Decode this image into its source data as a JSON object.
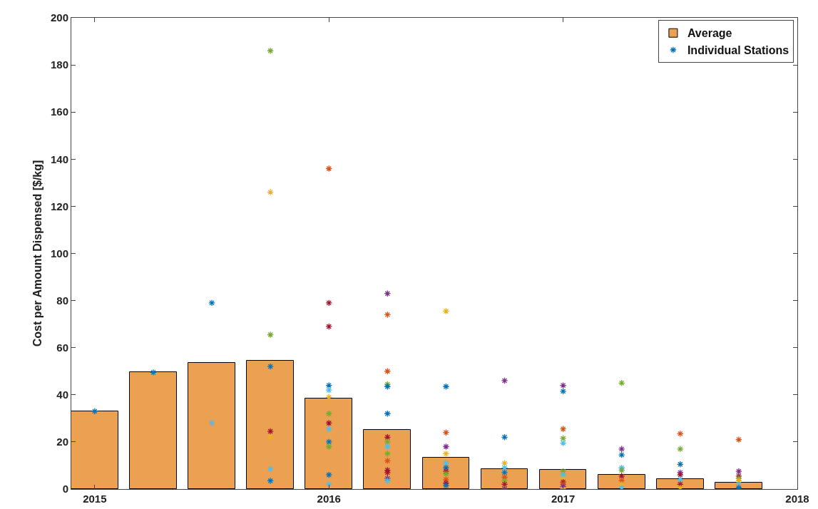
{
  "chart_data": {
    "type": "bar",
    "ylabel": "Cost per Amount Dispensed [$/kg]",
    "x": [
      2015,
      2015.25,
      2015.5,
      2015.75,
      2016,
      2016.25,
      2016.5,
      2016.75,
      2017,
      2017.25,
      2017.5,
      2017.75
    ],
    "xlim": [
      2014.9,
      2018
    ],
    "xticks": [
      2015,
      2016,
      2017,
      2018
    ],
    "ylim": [
      0,
      200
    ],
    "yticks": [
      0,
      20,
      40,
      60,
      80,
      100,
      120,
      140,
      160,
      180,
      200
    ],
    "grid": false,
    "legend": "top right",
    "marker": "cross",
    "series": [
      {
        "name": "Average",
        "color": "#eca052",
        "values": [
          33,
          49.5,
          53.5,
          54.5,
          38.5,
          25,
          13.3,
          8.5,
          8.2,
          6.2,
          4.2,
          2.7
        ]
      },
      {
        "name": "Individual Stations",
        "type": "scatter",
        "x": [
          2015,
          2015.25,
          2015.5,
          2015.5,
          2015.75,
          2015.75,
          2015.75,
          2015.75,
          2015.75,
          2015.75,
          2015.75,
          2015.75,
          2016,
          2016,
          2016,
          2016,
          2016,
          2016,
          2016,
          2016,
          2016,
          2016,
          2016,
          2016,
          2016,
          2016.25,
          2016.25,
          2016.25,
          2016.25,
          2016.25,
          2016.25,
          2016.25,
          2016.25,
          2016.25,
          2016.25,
          2016.25,
          2016.25,
          2016.25,
          2016.25,
          2016.25,
          2016.5,
          2016.5,
          2016.5,
          2016.5,
          2016.5,
          2016.5,
          2016.5,
          2016.5,
          2016.5,
          2016.5,
          2016.5,
          2016.5,
          2016.75,
          2016.75,
          2016.75,
          2016.75,
          2016.75,
          2016.75,
          2016.75,
          2016.75,
          2016.75,
          2017,
          2017,
          2017,
          2017,
          2017,
          2017,
          2017,
          2017,
          2017,
          2017,
          2017,
          2017,
          2017.25,
          2017.25,
          2017.25,
          2017.25,
          2017.25,
          2017.25,
          2017.25,
          2017.25,
          2017.25,
          2017.5,
          2017.5,
          2017.5,
          2017.5,
          2017.5,
          2017.5,
          2017.5,
          2017.5,
          2017.75,
          2017.75,
          2017.75,
          2017.75,
          2017.75,
          2017.75,
          2017.75,
          2017.75
        ],
        "values": [
          33,
          49.5,
          79,
          28,
          186,
          126,
          65.5,
          52,
          24.5,
          22,
          8.5,
          3.5,
          136,
          79,
          69,
          44,
          42,
          39,
          32,
          28,
          25.5,
          20,
          18,
          6,
          2,
          83,
          74,
          50,
          44.5,
          43.5,
          32,
          22,
          20,
          18,
          15,
          12,
          8,
          7,
          4.5,
          3.5,
          75.5,
          43.5,
          24,
          18,
          15,
          11,
          9,
          7.5,
          6.5,
          4,
          2.5,
          1.5,
          46,
          22,
          11,
          9,
          7,
          5,
          3.5,
          2,
          0,
          44,
          41.5,
          25.5,
          21.5,
          19.5,
          7.5,
          6,
          4,
          3,
          2,
          1,
          0,
          45,
          17,
          14.5,
          9,
          8,
          5.5,
          3.5,
          2,
          0.5,
          23.5,
          17,
          10.5,
          7,
          6,
          4,
          2,
          0.5,
          21,
          7.5,
          5.5,
          4.5,
          3.5,
          2,
          0.5,
          0
        ],
        "colors": [
          "#0072bd",
          "#0072bd",
          "#0072bd",
          "#4dbeee",
          "#77ac30",
          "#edb120",
          "#77ac30",
          "#0072bd",
          "#a2142f",
          "#edb120",
          "#4dbeee",
          "#0072bd",
          "#d95319",
          "#a2142f",
          "#a2142f",
          "#0072bd",
          "#4dbeee",
          "#edb120",
          "#77ac30",
          "#a2142f",
          "#4dbeee",
          "#0072bd",
          "#77ac30",
          "#0072bd",
          "#4dbeee",
          "#7e2f8e",
          "#d95319",
          "#d95319",
          "#77ac30",
          "#0072bd",
          "#0072bd",
          "#a2142f",
          "#77ac30",
          "#4dbeee",
          "#77ac30",
          "#d95319",
          "#a2142f",
          "#a2142f",
          "#7e2f8e",
          "#4dbeee",
          "#edb120",
          "#0072bd",
          "#d95319",
          "#7e2f8e",
          "#edb120",
          "#4dbeee",
          "#0072bd",
          "#a2142f",
          "#77ac30",
          "#d95319",
          "#a2142f",
          "#0072bd",
          "#7e2f8e",
          "#0072bd",
          "#edb120",
          "#4dbeee",
          "#0072bd",
          "#d95319",
          "#77ac30",
          "#a2142f",
          "#7e2f8e",
          "#7e2f8e",
          "#0072bd",
          "#d95319",
          "#77ac30",
          "#4dbeee",
          "#77ac30",
          "#4dbeee",
          "#edb120",
          "#a2142f",
          "#d95319",
          "#7e2f8e",
          "#edb120",
          "#77ac30",
          "#7e2f8e",
          "#0072bd",
          "#4dbeee",
          "#77ac30",
          "#a2142f",
          "#d95319",
          "#edb120",
          "#4dbeee",
          "#d95319",
          "#77ac30",
          "#0072bd",
          "#7e2f8e",
          "#a2142f",
          "#4dbeee",
          "#a2142f",
          "#edb120",
          "#d95319",
          "#7e2f8e",
          "#a2142f",
          "#77ac30",
          "#edb120",
          "#4dbeee",
          "#0072bd",
          "#0072bd"
        ]
      }
    ]
  }
}
